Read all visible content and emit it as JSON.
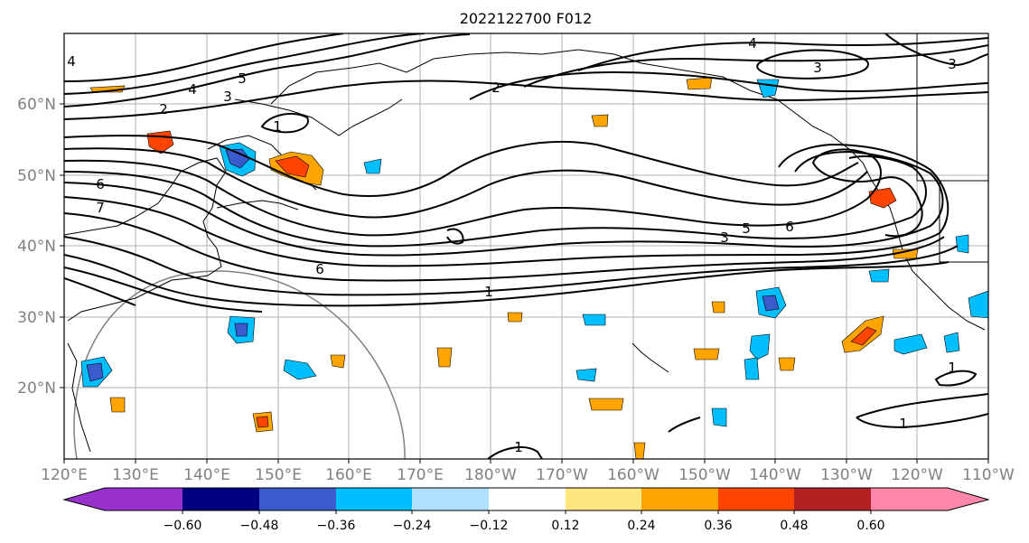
{
  "title": "2022122700 F012",
  "axes": {
    "x_ticks": [
      "120°E",
      "130°E",
      "140°E",
      "150°E",
      "160°E",
      "170°E",
      "180°W",
      "170°W",
      "160°W",
      "150°W",
      "140°W",
      "130°W",
      "120°W",
      "110°W"
    ],
    "y_ticks": [
      "60°N",
      "50°N",
      "40°N",
      "30°N",
      "20°N"
    ],
    "lon_range": [
      120,
      250
    ],
    "lat_range": [
      10,
      70
    ],
    "grid": true,
    "tick_color": "#808080"
  },
  "contour_labels": [
    "4",
    "5",
    "4",
    "3",
    "2",
    "1",
    "2",
    "4",
    "3",
    "3",
    "6",
    "7",
    "6",
    "5",
    "3",
    "6",
    "1",
    "1",
    "1",
    "1"
  ],
  "colorbar": {
    "ticks": [
      "−0.60",
      "−0.48",
      "−0.36",
      "−0.24",
      "−0.12",
      "0.12",
      "0.24",
      "0.36",
      "0.48",
      "0.60"
    ],
    "colors": [
      "#9932cc",
      "#000080",
      "#3a5bcc",
      "#00bfff",
      "#b0e0ff",
      "#ffffff",
      "#ffe680",
      "#ffa500",
      "#ff4500",
      "#b22222",
      "#ff88aa"
    ]
  }
}
